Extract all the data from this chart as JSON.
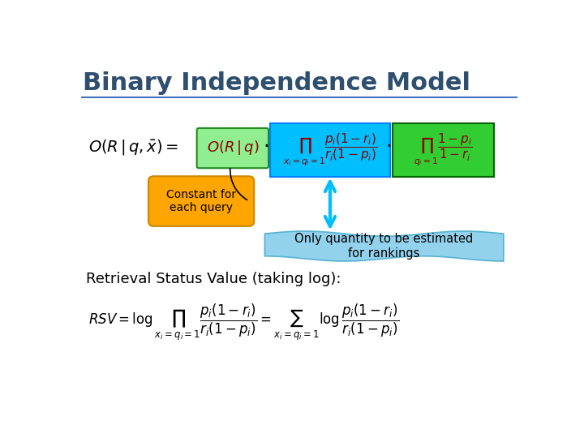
{
  "title": "Binary Independence Model",
  "title_color": "#2F4F6F",
  "title_fontsize": 22,
  "bg_color": "#FFFFFF",
  "separator_color": "#4472C4",
  "label_constant": "Constant for\neach query",
  "label_only": "Only quantity to be estimated\nfor rankings",
  "box_orq_color": "#90EE90",
  "box_prod1_color": "#00BFFF",
  "box_prod2_color": "#32CD32",
  "box_constant_color": "#FFA500",
  "box_only_color": "#87CEEB",
  "arrow_color": "#00BFFF",
  "retrieval_label": "Retrieval Status Value (taking log):"
}
